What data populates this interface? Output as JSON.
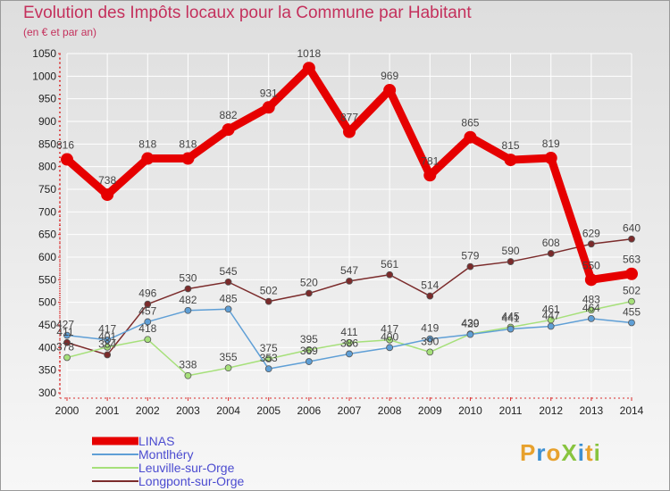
{
  "header": {
    "title": "Evolution des Impôts locaux pour la Commune par Habitant",
    "subtitle": "(en € et par an)"
  },
  "logo": {
    "text": "ProXiti"
  },
  "colors": {
    "title": "#c4305c",
    "axis": "#d92c2c",
    "grid": "#ffffff"
  },
  "chart_data": {
    "type": "line",
    "title": "Evolution des Impôts locaux pour la Commune par Habitant",
    "subtitle": "(en € et par an)",
    "x": [
      "2000",
      "2001",
      "2002",
      "2003",
      "2004",
      "2005",
      "2006",
      "2007",
      "2008",
      "2009",
      "2010",
      "2011",
      "2012",
      "2013",
      "2014"
    ],
    "ylim": [
      300,
      1050
    ],
    "yticks": [
      300,
      350,
      400,
      450,
      500,
      550,
      600,
      650,
      700,
      750,
      800,
      850,
      900,
      950,
      1000,
      1050
    ],
    "grid": true,
    "legend_position": "bottom-left",
    "series": [
      {
        "name": "LINAS",
        "color": "#e60000",
        "values": [
          816,
          738,
          818,
          818,
          882,
          931,
          1018,
          877,
          969,
          781,
          865,
          815,
          819,
          550,
          563
        ]
      },
      {
        "name": "Montlhéry",
        "color": "#5f9fd6",
        "values": [
          427,
          417,
          457,
          482,
          485,
          353,
          369,
          386,
          400,
          419,
          429,
          441,
          447,
          464,
          455
        ]
      },
      {
        "name": "Leuville-sur-Orge",
        "color": "#a6e07a",
        "values": [
          378,
          401,
          418,
          338,
          355,
          375,
          395,
          411,
          417,
          390,
          430,
          445,
          461,
          483,
          502
        ]
      },
      {
        "name": "Longpont-sur-Orge",
        "color": "#7b2b2b",
        "values": [
          411,
          384,
          496,
          530,
          545,
          502,
          520,
          547,
          561,
          514,
          579,
          590,
          608,
          629,
          640
        ]
      }
    ]
  }
}
